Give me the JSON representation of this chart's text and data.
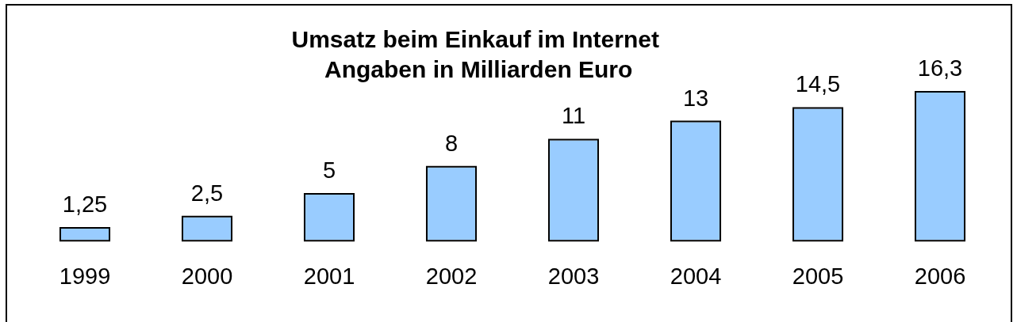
{
  "chart_data": {
    "type": "bar",
    "title": "Umsatz beim Einkauf im Internet",
    "subtitle": "Angaben in Milliarden Euro",
    "categories": [
      "1999",
      "2000",
      "2001",
      "2002",
      "2003",
      "2004",
      "2005",
      "2006"
    ],
    "values": [
      1.25,
      2.5,
      5,
      8,
      11,
      13,
      14.5,
      16.3
    ],
    "value_labels": [
      "1,25",
      "2,5",
      "5",
      "8",
      "11",
      "13",
      "14,5",
      "16,3"
    ],
    "color": "#99ccff",
    "tick_labels": "x",
    "legend": false
  }
}
